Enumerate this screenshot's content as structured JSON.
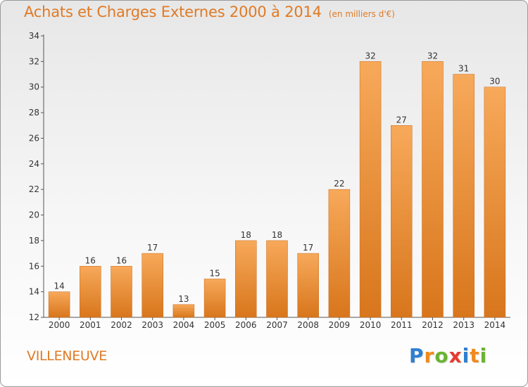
{
  "header": {
    "title": "Achats et Charges Externes 2000 à 2014",
    "subtitle": "(en milliers d'€)"
  },
  "footer": {
    "city": "VILLENEUVE",
    "logo": {
      "letters": [
        "P",
        "r",
        "o",
        "x",
        "i",
        "t",
        "i"
      ],
      "colors": [
        "#2e7fd0",
        "#f08a1c",
        "#6ab32e",
        "#e53a30",
        "#2e7fd0",
        "#f08a1c",
        "#6ab32e"
      ]
    }
  },
  "colors": {
    "accent": "#e07a25",
    "bar_light": "#f7a95a",
    "bar_dark": "#d8761c"
  },
  "chart_data": {
    "type": "bar",
    "title": "Achats et Charges Externes 2000 à 2014",
    "subtitle": "(en milliers d'€)",
    "categories": [
      "2000",
      "2001",
      "2002",
      "2003",
      "2004",
      "2005",
      "2006",
      "2007",
      "2008",
      "2009",
      "2010",
      "2011",
      "2012",
      "2013",
      "2014"
    ],
    "values": [
      14,
      16,
      16,
      17,
      13,
      15,
      18,
      18,
      17,
      22,
      32,
      27,
      32,
      31,
      30
    ],
    "ylim": [
      12,
      34
    ],
    "yticks": [
      12,
      14,
      16,
      18,
      20,
      22,
      24,
      26,
      28,
      30,
      32,
      34
    ],
    "grid": false,
    "legend": "none"
  }
}
